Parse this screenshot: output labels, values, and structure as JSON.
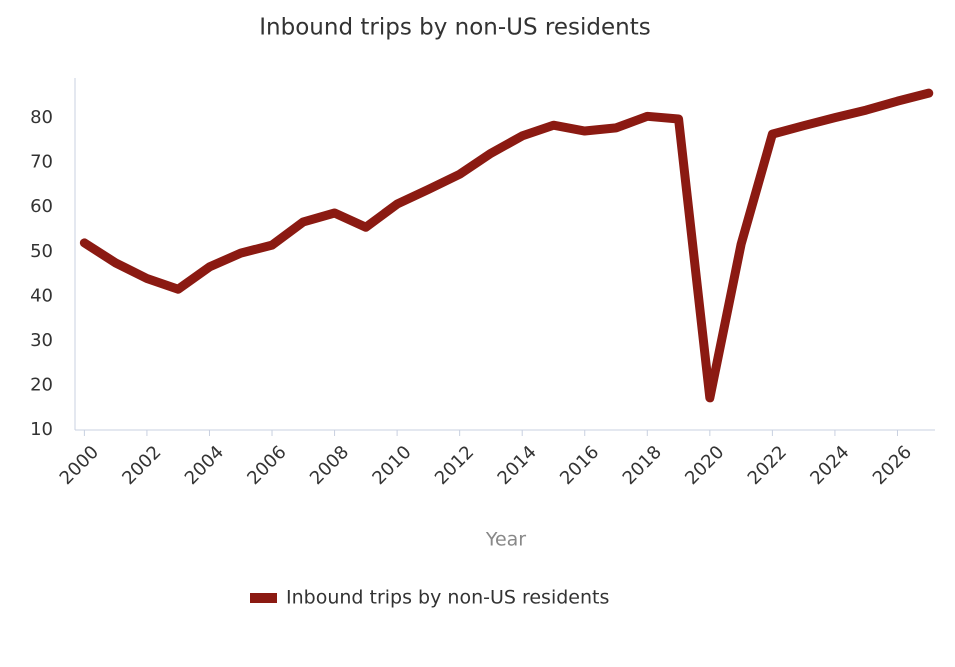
{
  "chart_data": {
    "type": "line",
    "title": "Inbound trips by non-US residents",
    "x_label": "Year",
    "x": [
      2000,
      2001,
      2002,
      2003,
      2004,
      2005,
      2006,
      2007,
      2008,
      2009,
      2010,
      2011,
      2012,
      2013,
      2014,
      2015,
      2016,
      2017,
      2018,
      2019,
      2020,
      2021,
      2022,
      2023,
      2024,
      2025,
      2026,
      2027
    ],
    "series": [
      {
        "name": "Inbound trips by non-US residents",
        "color": "#8b1a12",
        "values": [
          52,
          47.5,
          44,
          41.6,
          46.6,
          49.7,
          51.5,
          56.7,
          58.7,
          55.5,
          60.7,
          64,
          67.4,
          72.1,
          76,
          78.4,
          77.1,
          77.8,
          80.4,
          79.8,
          17.2,
          51.7,
          76.4,
          78.3,
          80.1,
          81.8,
          83.8,
          85.6
        ]
      }
    ],
    "xlim": [
      1999.7,
      2027.2
    ],
    "xticks": [
      2000,
      2002,
      2004,
      2006,
      2008,
      2010,
      2012,
      2014,
      2016,
      2018,
      2020,
      2022,
      2024,
      2026
    ],
    "ylim": [
      10,
      89
    ],
    "yticks": [
      10,
      20,
      30,
      40,
      50,
      60,
      70,
      80
    ],
    "grid": false,
    "legend": "bottom"
  }
}
